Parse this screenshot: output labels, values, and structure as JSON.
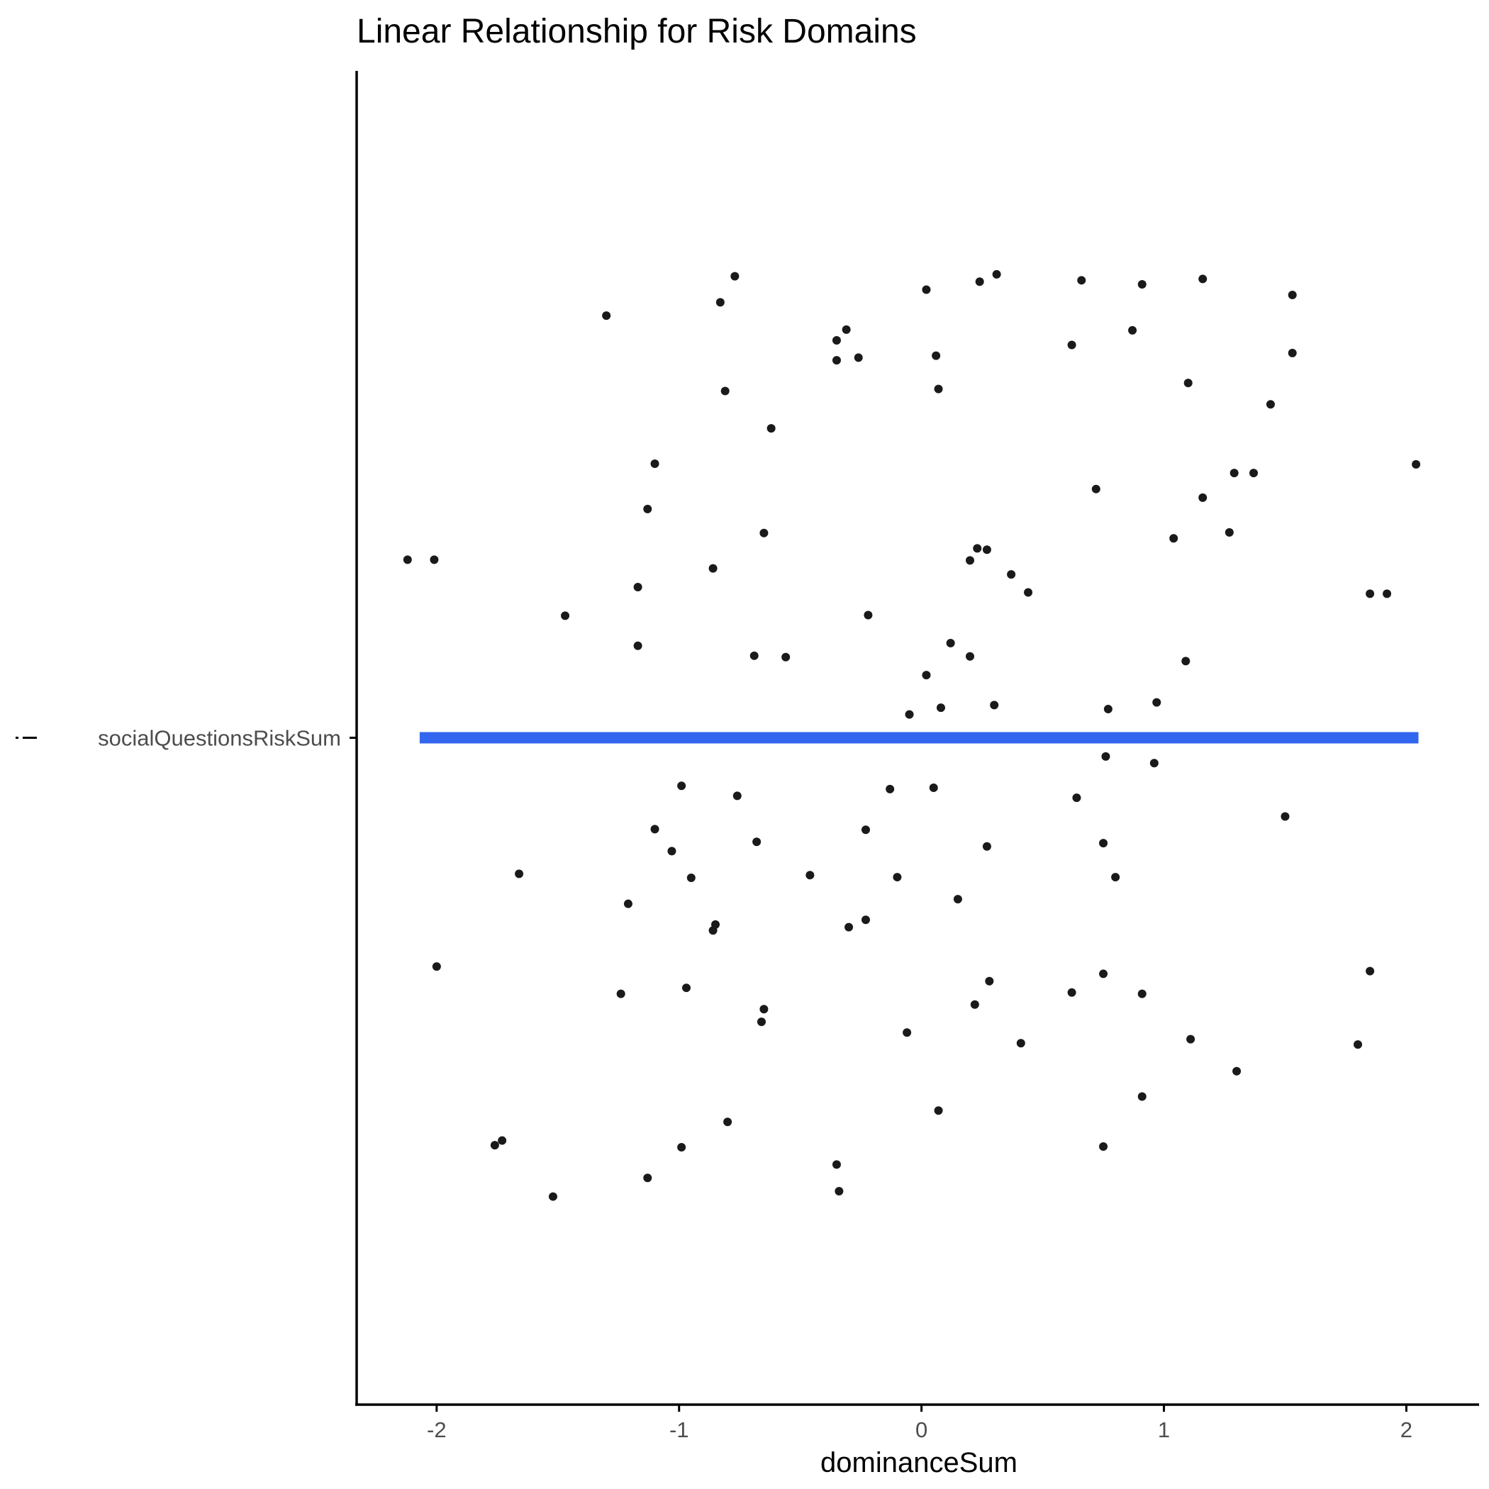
{
  "chart_data": {
    "type": "scatter",
    "title": "Linear Relationship for Risk Domains",
    "xlabel": "dominanceSum",
    "ylabel": "",
    "x_ticks": [
      "-2",
      "-1",
      "0",
      "1",
      "2"
    ],
    "x_tick_values": [
      -2,
      -1,
      0,
      1,
      2
    ],
    "y_categories": [
      "socialQuestionsRiskSum"
    ],
    "y_legend_glyph": "-",
    "xlim": [
      -2.33,
      2.3
    ],
    "ylim": [
      -1.0,
      1.0
    ],
    "grid": false,
    "point_color": "#1a1a1a",
    "line_color": "#3366ee",
    "fit_line": {
      "x": [
        -2.07,
        2.05
      ],
      "y": [
        0.0,
        0.0
      ]
    },
    "points": [
      [
        -2.12,
        0.267
      ],
      [
        -2.01,
        0.267
      ],
      [
        -2.0,
        -0.343
      ],
      [
        -1.76,
        -0.611
      ],
      [
        -1.73,
        -0.604
      ],
      [
        -1.66,
        -0.204
      ],
      [
        -1.52,
        -0.688
      ],
      [
        -1.47,
        0.183
      ],
      [
        -1.3,
        0.633
      ],
      [
        -1.24,
        -0.384
      ],
      [
        -1.21,
        -0.249
      ],
      [
        -1.17,
        0.226
      ],
      [
        -1.17,
        0.138
      ],
      [
        -1.13,
        0.343
      ],
      [
        -1.13,
        -0.66
      ],
      [
        -1.1,
        0.411
      ],
      [
        -1.1,
        -0.137
      ],
      [
        -1.03,
        -0.17
      ],
      [
        -0.99,
        -0.072
      ],
      [
        -0.99,
        -0.614
      ],
      [
        -0.97,
        -0.375
      ],
      [
        -0.95,
        -0.21
      ],
      [
        -0.86,
        0.254
      ],
      [
        -0.86,
        -0.289
      ],
      [
        -0.85,
        -0.28
      ],
      [
        -0.83,
        0.653
      ],
      [
        -0.81,
        0.52
      ],
      [
        -0.8,
        -0.576
      ],
      [
        -0.77,
        0.692
      ],
      [
        -0.76,
        -0.087
      ],
      [
        -0.69,
        0.123
      ],
      [
        -0.68,
        -0.156
      ],
      [
        -0.66,
        -0.426
      ],
      [
        -0.65,
        0.307
      ],
      [
        -0.65,
        -0.407
      ],
      [
        -0.62,
        0.464
      ],
      [
        -0.56,
        0.121
      ],
      [
        -0.46,
        -0.206
      ],
      [
        -0.35,
        0.596
      ],
      [
        -0.35,
        0.566
      ],
      [
        -0.35,
        -0.64
      ],
      [
        -0.34,
        -0.68
      ],
      [
        -0.31,
        0.612
      ],
      [
        -0.3,
        -0.284
      ],
      [
        -0.26,
        0.57
      ],
      [
        -0.23,
        -0.138
      ],
      [
        -0.23,
        -0.273
      ],
      [
        -0.22,
        0.184
      ],
      [
        -0.13,
        -0.077
      ],
      [
        -0.1,
        -0.209
      ],
      [
        -0.06,
        -0.442
      ],
      [
        -0.05,
        0.035
      ],
      [
        0.02,
        0.672
      ],
      [
        0.02,
        0.094
      ],
      [
        0.05,
        -0.075
      ],
      [
        0.06,
        0.573
      ],
      [
        0.07,
        0.523
      ],
      [
        0.07,
        -0.559
      ],
      [
        0.08,
        0.045
      ],
      [
        0.12,
        0.142
      ],
      [
        0.15,
        -0.242
      ],
      [
        0.2,
        0.266
      ],
      [
        0.2,
        0.122
      ],
      [
        0.22,
        -0.4
      ],
      [
        0.23,
        0.284
      ],
      [
        0.24,
        0.684
      ],
      [
        0.27,
        0.282
      ],
      [
        0.27,
        -0.163
      ],
      [
        0.28,
        -0.365
      ],
      [
        0.3,
        0.049
      ],
      [
        0.31,
        0.695
      ],
      [
        0.37,
        0.245
      ],
      [
        0.41,
        -0.458
      ],
      [
        0.44,
        0.218
      ],
      [
        0.62,
        0.589
      ],
      [
        0.62,
        -0.382
      ],
      [
        0.64,
        -0.09
      ],
      [
        0.66,
        0.686
      ],
      [
        0.72,
        0.373
      ],
      [
        0.75,
        -0.158
      ],
      [
        0.75,
        -0.354
      ],
      [
        0.75,
        -0.613
      ],
      [
        0.76,
        -0.028
      ],
      [
        0.77,
        0.043
      ],
      [
        0.8,
        -0.209
      ],
      [
        0.87,
        0.611
      ],
      [
        0.91,
        0.68
      ],
      [
        0.91,
        -0.384
      ],
      [
        0.91,
        -0.538
      ],
      [
        0.96,
        -0.038
      ],
      [
        0.97,
        0.053
      ],
      [
        1.04,
        0.299
      ],
      [
        1.09,
        0.115
      ],
      [
        1.1,
        0.532
      ],
      [
        1.11,
        -0.452
      ],
      [
        1.16,
        0.688
      ],
      [
        1.16,
        0.36
      ],
      [
        1.27,
        0.308
      ],
      [
        1.29,
        0.397
      ],
      [
        1.3,
        -0.5
      ],
      [
        1.37,
        0.397
      ],
      [
        1.44,
        0.5
      ],
      [
        1.5,
        -0.118
      ],
      [
        1.53,
        0.664
      ],
      [
        1.53,
        0.577
      ],
      [
        1.8,
        -0.46
      ],
      [
        1.85,
        0.216
      ],
      [
        1.85,
        -0.35
      ],
      [
        1.92,
        0.216
      ],
      [
        2.04,
        0.41
      ]
    ]
  }
}
